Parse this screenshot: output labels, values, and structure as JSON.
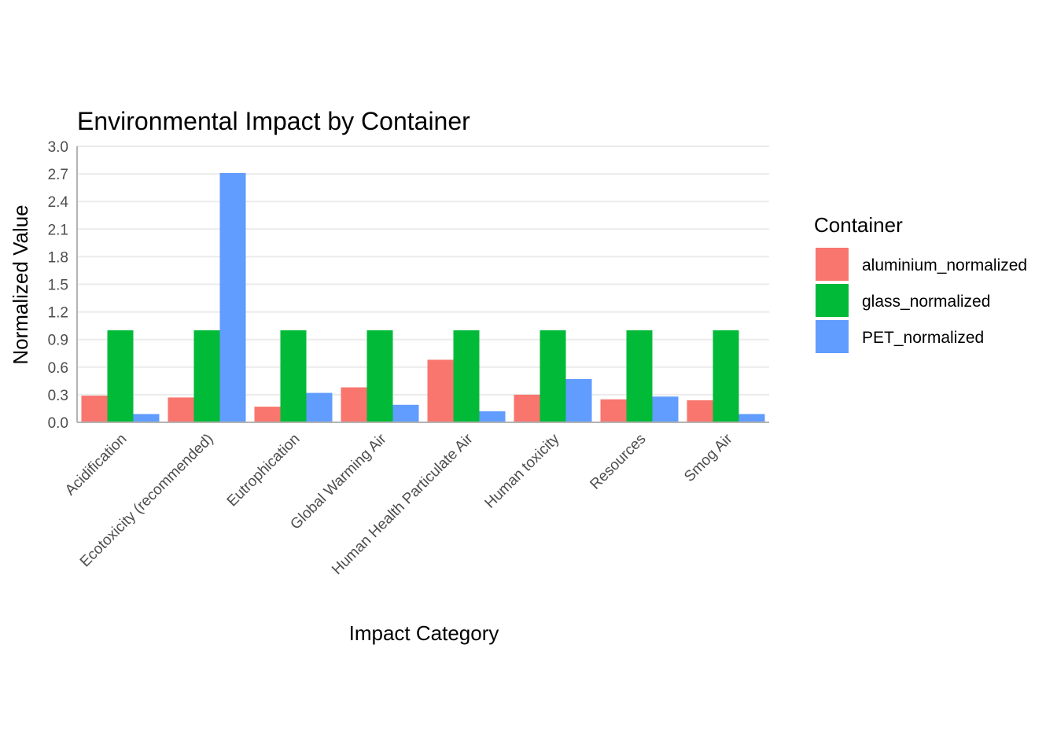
{
  "chart_data": {
    "type": "bar",
    "title": "Environmental Impact by Container",
    "xlabel": "Impact Category",
    "ylabel": "Normalized Value",
    "ylim": [
      0,
      3.0
    ],
    "yticks": [
      "0.0",
      "0.3",
      "0.6",
      "0.9",
      "1.2",
      "1.5",
      "1.8",
      "2.1",
      "2.4",
      "2.7",
      "3.0"
    ],
    "categories": [
      "Acidification",
      "Ecotoxicity (recommended)",
      "Eutrophication",
      "Global Warming Air",
      "Human Health Particulate Air",
      "Human toxicity",
      "Resources",
      "Smog Air"
    ],
    "series": [
      {
        "name": "aluminium_normalized",
        "color": "#F8766D",
        "values": [
          0.29,
          0.27,
          0.17,
          0.38,
          0.68,
          0.3,
          0.25,
          0.24
        ]
      },
      {
        "name": "glass_normalized",
        "color": "#00BA38",
        "values": [
          1.0,
          1.0,
          1.0,
          1.0,
          1.0,
          1.0,
          1.0,
          1.0
        ]
      },
      {
        "name": "PET_normalized",
        "color": "#619CFF",
        "values": [
          0.09,
          2.71,
          0.32,
          0.19,
          0.12,
          0.47,
          0.28,
          0.09
        ]
      }
    ],
    "legend": {
      "title": "Container",
      "position": "right"
    },
    "grid": true
  }
}
